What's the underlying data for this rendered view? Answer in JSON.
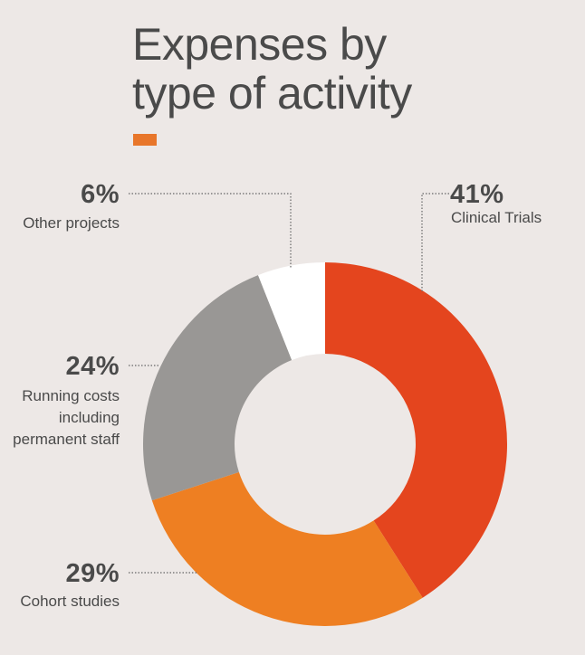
{
  "title_lines": [
    "Expenses by",
    "type of activity"
  ],
  "colors": {
    "accent": "#e8762a",
    "background": "#ede8e6",
    "text": "#4a4a4a",
    "leader": "#666666"
  },
  "chart_data": {
    "type": "pie",
    "variant": "donut",
    "slices": [
      {
        "label": "Clinical Trials",
        "value": 41,
        "display": "41%",
        "color": "#e4451e"
      },
      {
        "label": "Cohort studies",
        "value": 29,
        "display": "29%",
        "color": "#ee7f22"
      },
      {
        "label": "Running costs including permanent staff",
        "value": 24,
        "display": "24%",
        "color": "#999795"
      },
      {
        "label": "Other projects",
        "value": 6,
        "display": "6%",
        "color": "#ffffff"
      }
    ]
  },
  "callouts": {
    "clinical": {
      "pct": "41%",
      "lines": [
        "Clinical Trials"
      ]
    },
    "cohort": {
      "pct": "29%",
      "lines": [
        "Cohort studies"
      ]
    },
    "running": {
      "pct": "24%",
      "lines": [
        "Running costs",
        "including",
        "permanent staff"
      ]
    },
    "other": {
      "pct": "6%",
      "lines": [
        "Other projects"
      ]
    }
  }
}
